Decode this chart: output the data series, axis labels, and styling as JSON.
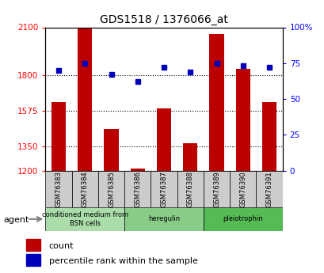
{
  "title": "GDS1518 / 1376066_at",
  "samples": [
    "GSM76383",
    "GSM76384",
    "GSM76385",
    "GSM76386",
    "GSM76387",
    "GSM76388",
    "GSM76389",
    "GSM76390",
    "GSM76391"
  ],
  "counts": [
    1630,
    2100,
    1460,
    1215,
    1590,
    1370,
    2060,
    1840,
    1630
  ],
  "percentiles": [
    70,
    75,
    67,
    62,
    72,
    69,
    75,
    73,
    72
  ],
  "ylim_left": [
    1200,
    2100
  ],
  "ylim_right": [
    0,
    100
  ],
  "yticks_left": [
    1200,
    1350,
    1575,
    1800,
    2100
  ],
  "yticks_right": [
    0,
    25,
    50,
    75,
    100
  ],
  "bar_color": "#bb0000",
  "dot_color": "#0000bb",
  "agent_groups": [
    {
      "label": "conditioned medium from\nBSN cells",
      "start": 0,
      "end": 3
    },
    {
      "label": "heregulin",
      "start": 3,
      "end": 6
    },
    {
      "label": "pleiotrophin",
      "start": 6,
      "end": 9
    }
  ],
  "group_colors": [
    "#aaddaa",
    "#88cc88",
    "#55bb55"
  ],
  "legend_count_label": "count",
  "legend_pct_label": "percentile rank within the sample",
  "xlabel_agent": "agent",
  "fig_width": 4.1,
  "fig_height": 3.45,
  "dpi": 100
}
